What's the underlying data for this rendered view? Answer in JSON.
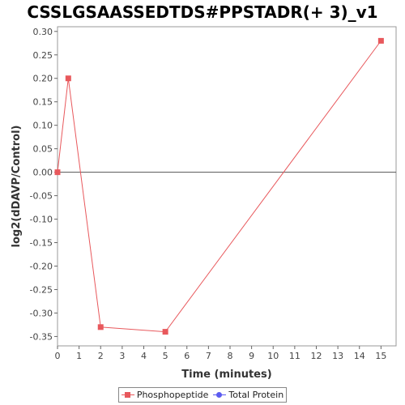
{
  "chart_data": {
    "type": "line",
    "title": "CSSLGSAASSEDTDS#PPSTADR(+ 3)_v1",
    "xlabel": "Time (minutes)",
    "ylabel": "log2(dDAVP/Control)",
    "xlim": [
      0,
      15.7
    ],
    "ylim": [
      -0.37,
      0.31
    ],
    "xticks": [
      0,
      1,
      2,
      3,
      4,
      5,
      6,
      7,
      8,
      9,
      10,
      11,
      12,
      13,
      14,
      15
    ],
    "yticks": [
      0.3,
      0.25,
      0.2,
      0.15,
      0.1,
      0.05,
      0.0,
      -0.05,
      -0.1,
      -0.15,
      -0.2,
      -0.25,
      -0.3,
      -0.35
    ],
    "ytick_labels": [
      "0.30",
      "0.25",
      "0.20",
      "0.15",
      "0.10",
      "0.05",
      "0.00",
      "-0.05",
      "-0.10",
      "-0.15",
      "-0.20",
      "-0.25",
      "-0.30",
      "-0.35"
    ],
    "zero_line": true,
    "grid": false,
    "legend_position": "bottom",
    "series": [
      {
        "name": "Phosphopeptide",
        "color": "#e8585c",
        "marker": "square",
        "x": [
          0,
          0.5,
          2,
          5,
          15
        ],
        "y": [
          0.0,
          0.2,
          -0.33,
          -0.34,
          0.28
        ]
      },
      {
        "name": "Total Protein",
        "color": "#5b5bf0",
        "marker": "circle",
        "x": [],
        "y": []
      }
    ]
  }
}
